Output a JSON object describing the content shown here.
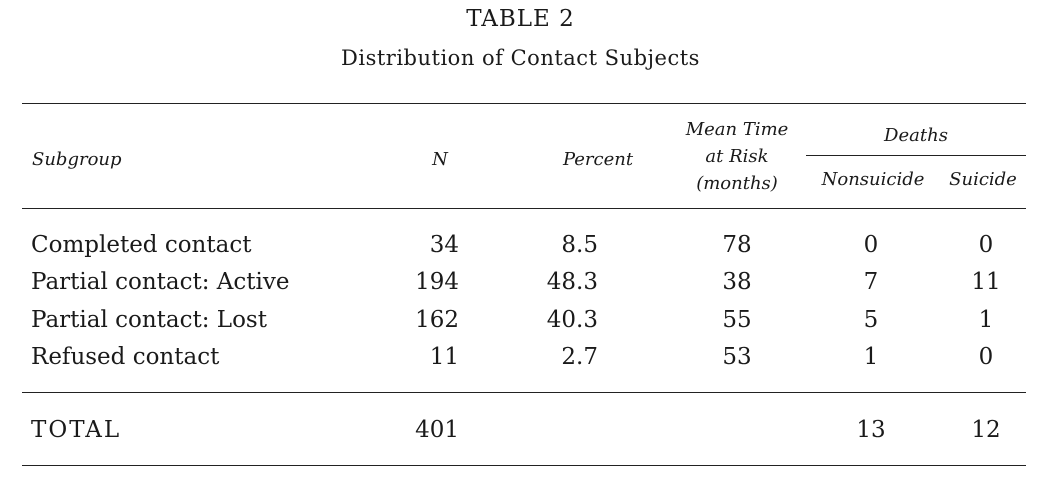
{
  "table": {
    "title": "TABLE 2",
    "subtitle": "Distribution of Contact Subjects",
    "headers": {
      "subgroup": "Subgroup",
      "n": "N",
      "percent": "Percent",
      "mean_time_lines": [
        "Mean Time",
        "at Risk",
        "(months)"
      ],
      "deaths": "Deaths",
      "nonsuicide": "Nonsuicide",
      "suicide": "Suicide"
    },
    "rows": [
      {
        "subgroup": "Completed contact",
        "n": "34",
        "percent": "8.5",
        "mean_time": "78",
        "nonsuicide": "0",
        "suicide": "0"
      },
      {
        "subgroup": "Partial contact: Active",
        "n": "194",
        "percent": "48.3",
        "mean_time": "38",
        "nonsuicide": "7",
        "suicide": "11"
      },
      {
        "subgroup": "Partial contact: Lost",
        "n": "162",
        "percent": "40.3",
        "mean_time": "55",
        "nonsuicide": "5",
        "suicide": "1"
      },
      {
        "subgroup": "Refused contact",
        "n": "11",
        "percent": "2.7",
        "mean_time": "53",
        "nonsuicide": "1",
        "suicide": "0"
      }
    ],
    "total": {
      "label": "TOTAL",
      "n": "401",
      "percent": "",
      "mean_time": "",
      "nonsuicide": "13",
      "suicide": "12"
    }
  }
}
